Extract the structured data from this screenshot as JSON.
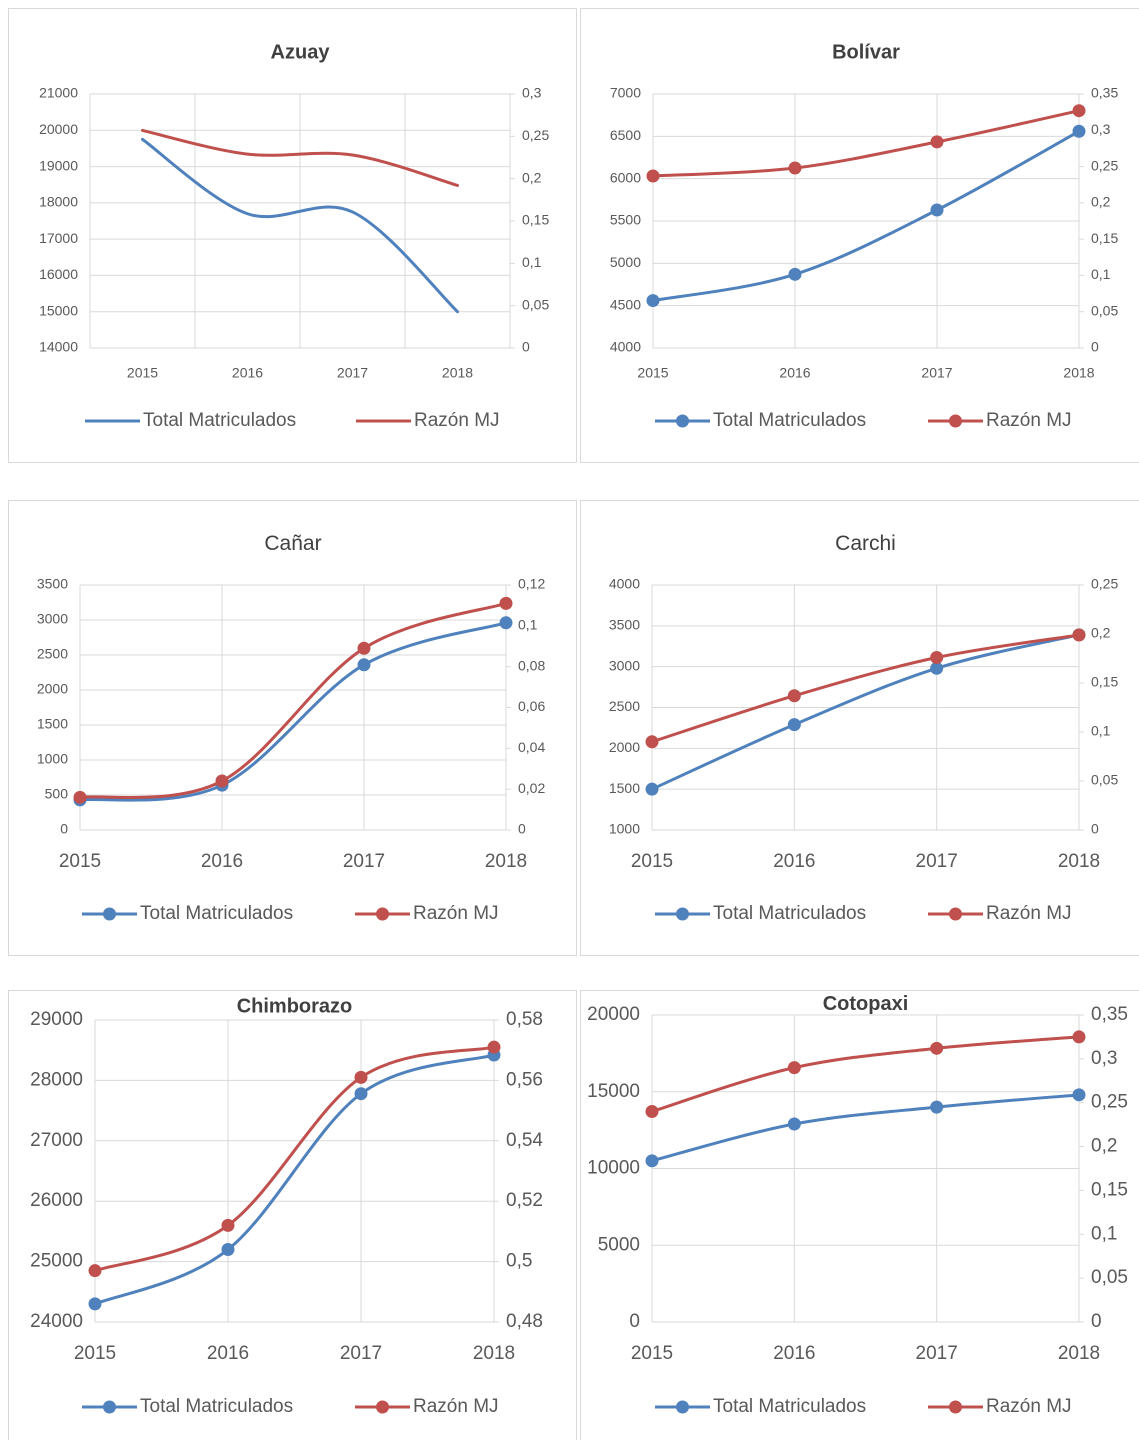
{
  "chart_data": [
    {
      "type": "line",
      "title": "Azuay",
      "categories": [
        "2015",
        "2016",
        "2017",
        "2018"
      ],
      "smooth": true,
      "markers": false,
      "grid": true,
      "series": [
        {
          "name": "Total Matriculados",
          "color": "#4f81bd",
          "values": [
            19750,
            17700,
            17750,
            15000
          ]
        },
        {
          "name": "Razón MJ",
          "color": "#c0504d",
          "axis": "y2",
          "values": [
            0.257,
            0.229,
            0.228,
            0.192
          ]
        }
      ],
      "ylim": [
        14000,
        21000
      ],
      "yticks": [
        14000,
        15000,
        16000,
        17000,
        18000,
        19000,
        20000,
        21000
      ],
      "y2lim": [
        0,
        0.3
      ],
      "y2ticks": [
        0,
        {
          "value": 0.05,
          "label": "0,05"
        },
        {
          "value": 0.1,
          "label": "0,1"
        },
        {
          "value": 0.15,
          "label": "0,15"
        },
        {
          "value": 0.2,
          "label": "0,2"
        },
        {
          "value": 0.25,
          "label": "0,25"
        },
        {
          "value": 0.3,
          "label": "0,3"
        }
      ]
    },
    {
      "type": "line",
      "title": "Bolívar",
      "categories": [
        "2015",
        "2016",
        "2017",
        "2018"
      ],
      "smooth": true,
      "markers": true,
      "grid": true,
      "series": [
        {
          "name": "Total Matriculados",
          "color": "#4f81bd",
          "values": [
            4560,
            4870,
            5630,
            6560
          ]
        },
        {
          "name": "Razón MJ",
          "color": "#c0504d",
          "axis": "y2",
          "values": [
            0.237,
            0.248,
            0.284,
            0.327
          ]
        }
      ],
      "ylim": [
        4000,
        7000
      ],
      "yticks": [
        4000,
        4500,
        5000,
        5500,
        6000,
        6500,
        7000
      ],
      "y2lim": [
        0,
        0.35
      ],
      "y2ticks": [
        0,
        {
          "value": 0.05,
          "label": "0,05"
        },
        {
          "value": 0.1,
          "label": "0,1"
        },
        {
          "value": 0.15,
          "label": "0,15"
        },
        {
          "value": 0.2,
          "label": "0,2"
        },
        {
          "value": 0.25,
          "label": "0,25"
        },
        {
          "value": 0.3,
          "label": "0,3"
        },
        {
          "value": 0.35,
          "label": "0,35"
        }
      ]
    },
    {
      "type": "line",
      "title": "Cañar",
      "categories": [
        "2015",
        "2016",
        "2017",
        "2018"
      ],
      "smooth": true,
      "markers": true,
      "grid": true,
      "series": [
        {
          "name": "Total Matriculados",
          "color": "#4f81bd",
          "values": [
            430,
            640,
            2360,
            2960
          ]
        },
        {
          "name": "Razón MJ",
          "color": "#c0504d",
          "axis": "y2",
          "values": [
            0.016,
            0.024,
            0.089,
            0.111
          ]
        }
      ],
      "ylim": [
        0,
        3500
      ],
      "yticks": [
        0,
        500,
        1000,
        1500,
        2000,
        2500,
        3000,
        3500
      ],
      "y2lim": [
        0,
        0.12
      ],
      "y2ticks": [
        0,
        {
          "value": 0.02,
          "label": "0,02"
        },
        {
          "value": 0.04,
          "label": "0,04"
        },
        {
          "value": 0.06,
          "label": "0,06"
        },
        {
          "value": 0.08,
          "label": "0,08"
        },
        {
          "value": 0.1,
          "label": "0,1"
        },
        {
          "value": 0.12,
          "label": "0,12"
        }
      ]
    },
    {
      "type": "line",
      "title": "Carchi",
      "categories": [
        "2015",
        "2016",
        "2017",
        "2018"
      ],
      "smooth": true,
      "markers": true,
      "grid": true,
      "series": [
        {
          "name": "Total Matriculados",
          "color": "#4f81bd",
          "values": [
            1500,
            2290,
            2980,
            3390
          ]
        },
        {
          "name": "Razón MJ",
          "color": "#c0504d",
          "axis": "y2",
          "values": [
            0.09,
            0.137,
            0.176,
            0.199
          ]
        }
      ],
      "ylim": [
        1000,
        4000
      ],
      "yticks": [
        1000,
        1500,
        2000,
        2500,
        3000,
        3500,
        4000
      ],
      "y2lim": [
        0,
        0.25
      ],
      "y2ticks": [
        0,
        {
          "value": 0.05,
          "label": "0,05"
        },
        {
          "value": 0.1,
          "label": "0,1"
        },
        {
          "value": 0.15,
          "label": "0,15"
        },
        {
          "value": 0.2,
          "label": "0,2"
        },
        {
          "value": 0.25,
          "label": "0,25"
        }
      ]
    },
    {
      "type": "line",
      "title": "Chimborazo",
      "categories": [
        "2015",
        "2016",
        "2017",
        "2018"
      ],
      "smooth": true,
      "markers": true,
      "grid": true,
      "series": [
        {
          "name": "Total Matriculados",
          "color": "#4f81bd",
          "values": [
            24300,
            25200,
            27780,
            28420
          ]
        },
        {
          "name": "Razón MJ",
          "color": "#c0504d",
          "axis": "y2",
          "values": [
            0.497,
            0.512,
            0.561,
            0.571
          ]
        }
      ],
      "ylim": [
        24000,
        29000
      ],
      "yticks": [
        24000,
        25000,
        26000,
        27000,
        28000,
        29000
      ],
      "y2lim": [
        0.48,
        0.58
      ],
      "y2ticks": [
        {
          "value": 0.48,
          "label": "0,48"
        },
        {
          "value": 0.5,
          "label": "0,5"
        },
        {
          "value": 0.52,
          "label": "0,52"
        },
        {
          "value": 0.54,
          "label": "0,54"
        },
        {
          "value": 0.56,
          "label": "0,56"
        },
        {
          "value": 0.58,
          "label": "0,58"
        }
      ]
    },
    {
      "type": "line",
      "title": "Cotopaxi",
      "categories": [
        "2015",
        "2016",
        "2017",
        "2018"
      ],
      "smooth": true,
      "markers": true,
      "grid": true,
      "series": [
        {
          "name": "Total Matriculados",
          "color": "#4f81bd",
          "values": [
            10500,
            12900,
            14000,
            14800
          ]
        },
        {
          "name": "Razón MJ",
          "color": "#c0504d",
          "axis": "y2",
          "values": [
            0.24,
            0.29,
            0.312,
            0.325
          ]
        }
      ],
      "ylim": [
        0,
        20000
      ],
      "yticks": [
        0,
        5000,
        10000,
        15000,
        20000
      ],
      "y2lim": [
        0,
        0.35
      ],
      "y2ticks": [
        0,
        {
          "value": 0.05,
          "label": "0,05"
        },
        {
          "value": 0.1,
          "label": "0,1"
        },
        {
          "value": 0.15,
          "label": "0,15"
        },
        {
          "value": 0.2,
          "label": "0,2"
        },
        {
          "value": 0.25,
          "label": "0,25"
        },
        {
          "value": 0.3,
          "label": "0,3"
        },
        {
          "value": 0.35,
          "label": "0,35"
        }
      ]
    }
  ]
}
